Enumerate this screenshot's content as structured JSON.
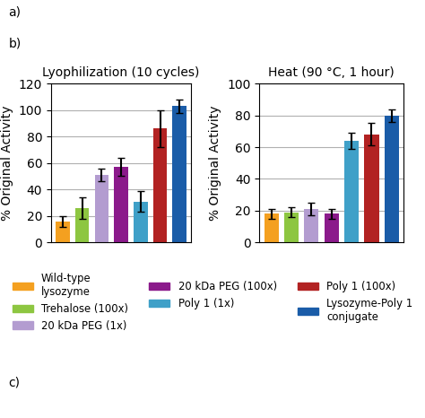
{
  "annotations": [
    "a)",
    "b)",
    "c)"
  ],
  "chart_data": [
    {
      "type": "bar",
      "title": "Lyophilization (10 cycles)",
      "y_label": "% Original Activity",
      "categories": [
        "Wild-type\nlysozyme",
        "Trehalose (100x)",
        "20 kDa PEG (1x)",
        "20 kDa PEG (100x)",
        "Poly 1 (1x)",
        "Poly 1 (100x)",
        "Lysozyme-Poly 1\nconjugate"
      ],
      "values": [
        16,
        26,
        51,
        57,
        31,
        86,
        103
      ],
      "errors": [
        4,
        8,
        5,
        7,
        8,
        14,
        5
      ],
      "colors": [
        "#F4A020",
        "#8DC641",
        "#B39CD0",
        "#8B1A8B",
        "#3FA0C8",
        "#B22222",
        "#1A5CA8"
      ],
      "ylim": [
        0,
        120
      ],
      "yticks": [
        0,
        20,
        40,
        60,
        80,
        100,
        120
      ],
      "grid": true,
      "tick_labels": "y"
    },
    {
      "type": "bar",
      "title": "Heat (90 °C, 1 hour)",
      "y_label": "% Original Activity",
      "categories": [
        "Wild-type\nlysozyme",
        "Trehalose (100x)",
        "20 kDa PEG (1x)",
        "20 kDa PEG (100x)",
        "Poly 1 (1x)",
        "Poly 1 (100x)",
        "Lysozyme-Poly 1\nconjugate"
      ],
      "values": [
        18,
        19,
        21,
        18,
        64,
        68,
        80
      ],
      "errors": [
        3,
        3,
        4,
        3,
        5,
        7,
        4
      ],
      "colors": [
        "#F4A020",
        "#8DC641",
        "#B39CD0",
        "#8B1A8B",
        "#3FA0C8",
        "#B22222",
        "#1A5CA8"
      ],
      "ylim": [
        0,
        100
      ],
      "yticks": [
        0,
        20,
        40,
        60,
        80,
        100
      ],
      "grid": true,
      "tick_labels": "y",
      "legend": "upper center"
    }
  ]
}
